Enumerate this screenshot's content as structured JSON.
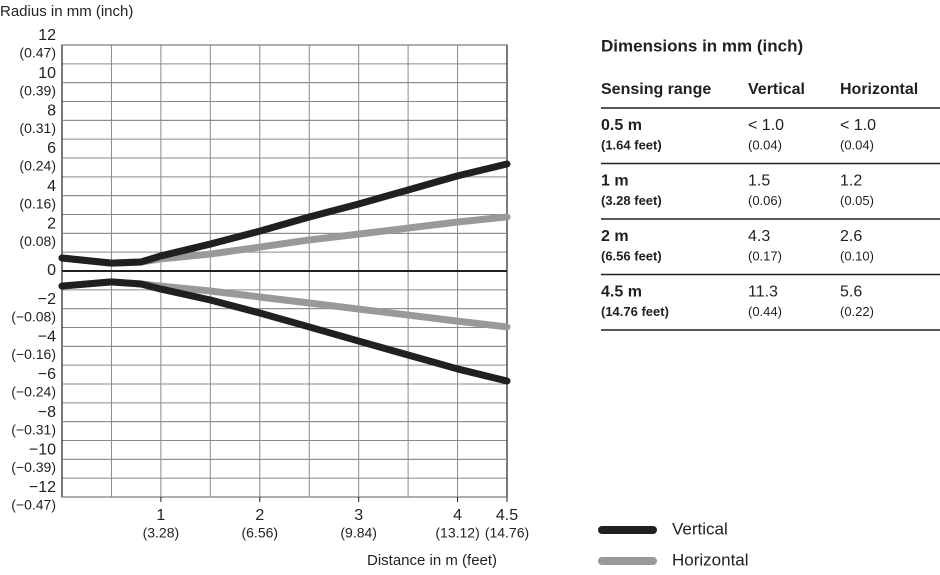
{
  "chart_data": {
    "type": "line",
    "y_label": "Radius in mm (inch)",
    "x_label": "Distance in m (feet)",
    "xlim": [
      0,
      4.5
    ],
    "ylim": [
      -12,
      12
    ],
    "xticks": [
      {
        "value": 1,
        "label": "1",
        "sublabel": "(3.28)"
      },
      {
        "value": 2,
        "label": "2",
        "sublabel": "(6.56)"
      },
      {
        "value": 3,
        "label": "3",
        "sublabel": "(9.84)"
      },
      {
        "value": 4,
        "label": "4",
        "sublabel": "(13.12)"
      },
      {
        "value": 4.5,
        "label": "4.5",
        "sublabel": "(14.76)"
      }
    ],
    "yticks": [
      {
        "value": 12,
        "label": "12",
        "sublabel": "(0.47)"
      },
      {
        "value": 10,
        "label": "10",
        "sublabel": "(0.39)"
      },
      {
        "value": 8,
        "label": "8",
        "sublabel": "(0.31)"
      },
      {
        "value": 6,
        "label": "6",
        "sublabel": "(0.24)"
      },
      {
        "value": 4,
        "label": "4",
        "sublabel": "(0.16)"
      },
      {
        "value": 2,
        "label": "2",
        "sublabel": "(0.08)"
      },
      0,
      {
        "value": -2,
        "label": "−2",
        "sublabel": "(−0.08)"
      },
      {
        "value": -4,
        "label": "−4",
        "sublabel": "(−0.16)"
      },
      {
        "value": -6,
        "label": "−6",
        "sublabel": "(−0.24)"
      },
      {
        "value": -8,
        "label": "−8",
        "sublabel": "(−0.31)"
      },
      {
        "value": -10,
        "label": "−10",
        "sublabel": "(−0.39)"
      },
      {
        "value": -12,
        "label": "−12",
        "sublabel": "(−0.47)"
      }
    ],
    "xgrid": [
      0.5,
      1,
      1.5,
      2,
      2.5,
      3,
      3.5,
      4
    ],
    "ygrid": [
      -11,
      -10,
      -9,
      -8,
      -7,
      -6,
      -5,
      -4,
      -3,
      -2,
      -1,
      1,
      2,
      3,
      4,
      5,
      6,
      7,
      8,
      9,
      10,
      11
    ],
    "grid": true,
    "x": [
      0,
      0.5,
      0.8,
      1,
      1.5,
      2,
      2.5,
      3,
      3.5,
      4,
      4.5
    ],
    "series": [
      {
        "name": "Horizontal",
        "color": "#999999",
        "values": [
          0.69,
          0.42,
          0.48,
          0.64,
          0.9,
          1.27,
          1.65,
          1.96,
          2.28,
          2.6,
          2.87
        ],
        "lower_values": [
          -0.8,
          -0.58,
          -0.69,
          -0.8,
          -1.06,
          -1.38,
          -1.7,
          -2.02,
          -2.34,
          -2.66,
          -2.97
        ]
      },
      {
        "name": "Vertical",
        "color": "#231f20",
        "values": [
          0.69,
          0.42,
          0.48,
          0.8,
          1.43,
          2.12,
          2.87,
          3.56,
          4.3,
          5.05,
          5.68
        ],
        "lower_values": [
          -0.8,
          -0.58,
          -0.69,
          -0.96,
          -1.54,
          -2.23,
          -2.97,
          -3.72,
          -4.46,
          -5.2,
          -5.84
        ]
      }
    ]
  },
  "table": {
    "title": "Dimensions in mm (inch)",
    "header": [
      "Sensing range",
      "Vertical",
      "Horizontal"
    ],
    "rows": [
      [
        {
          "main": "0.5 m",
          "sub": "(1.64 feet)"
        },
        {
          "main": "< 1.0",
          "sub": "(0.04)"
        },
        {
          "main": "< 1.0",
          "sub": "(0.04)"
        }
      ],
      [
        {
          "main": "1 m",
          "sub": "(3.28 feet)"
        },
        {
          "main": "1.5",
          "sub": "(0.06)"
        },
        {
          "main": "1.2",
          "sub": "(0.05)"
        }
      ],
      [
        {
          "main": "2 m",
          "sub": "(6.56 feet)"
        },
        {
          "main": "4.3",
          "sub": "(0.17)"
        },
        {
          "main": "2.6",
          "sub": "(0.10)"
        }
      ],
      [
        {
          "main": "4.5 m",
          "sub": "(14.76 feet)"
        },
        {
          "main": "11.3",
          "sub": "(0.44)"
        },
        {
          "main": "5.6",
          "sub": "(0.22)"
        }
      ]
    ]
  }
}
